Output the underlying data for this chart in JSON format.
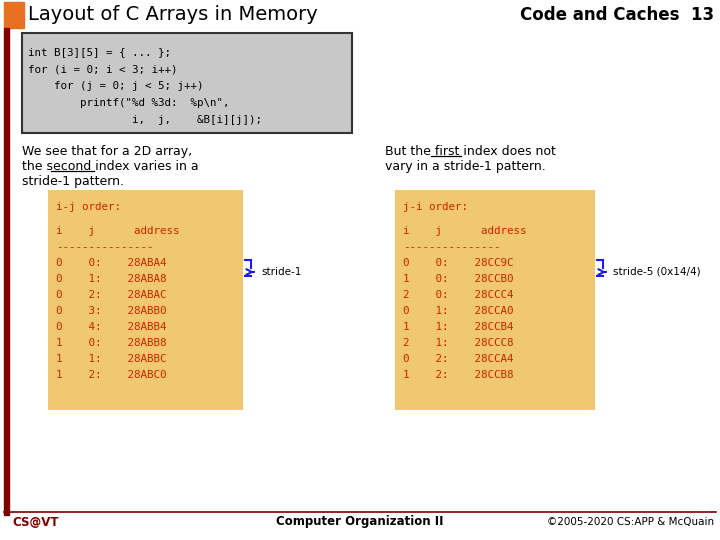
{
  "title": "Layout of C Arrays in Memory",
  "subtitle": "Code and Caches  13",
  "bg_color": "#ffffff",
  "orange_rect": "#e87020",
  "code_bg": "#c8c8c8",
  "table_bg": "#f0c870",
  "code_lines": [
    "int B[3][5] = { ... };",
    "for (i = 0; i < 3; i++)",
    "    for (j = 0; j < 5; j++)",
    "        printf(\"%d %3d:  %p\\n\",",
    "                i,  j,    &B[i][j]);"
  ],
  "left_text1": "We see that for a 2D array,",
  "left_text2": "the second index varies in a",
  "left_text3": "stride-1 pattern.",
  "right_text1": "But the first index does not",
  "right_text2": "vary in a stride-1 pattern.",
  "ij_title": "i-j order:",
  "ij_header": "i    j      address",
  "ij_sep": "---------------",
  "ij_rows": [
    "0    0:    28ABA4",
    "0    1:    28ABA8",
    "0    2:    28ABAC",
    "0    3:    28ABB0",
    "0    4:    28ABB4",
    "1    0:    28ABB8",
    "1    1:    28ABBC",
    "1    2:    28ABC0"
  ],
  "ji_title": "j-i order:",
  "ji_header": "i    j      address",
  "ji_sep": "---------------",
  "ji_rows": [
    "0    0:    28CC9C",
    "1    0:    28CCB0",
    "2    0:    28CCC4",
    "0    1:    28CCA0",
    "1    1:    28CCB4",
    "2    1:    28CCC8",
    "0    2:    28CCA4",
    "1    2:    28CCB8"
  ],
  "stride1_label": "stride-1",
  "stride5_label": "stride-5 (0x14/4)",
  "footer_left": "CS@VT",
  "footer_center": "Computer Organization II",
  "footer_right": "©2005-2020 CS:APP & McQuain",
  "dark_red": "#800000",
  "mono_color": "#cc2200",
  "blue_brace": "#1a1aee"
}
